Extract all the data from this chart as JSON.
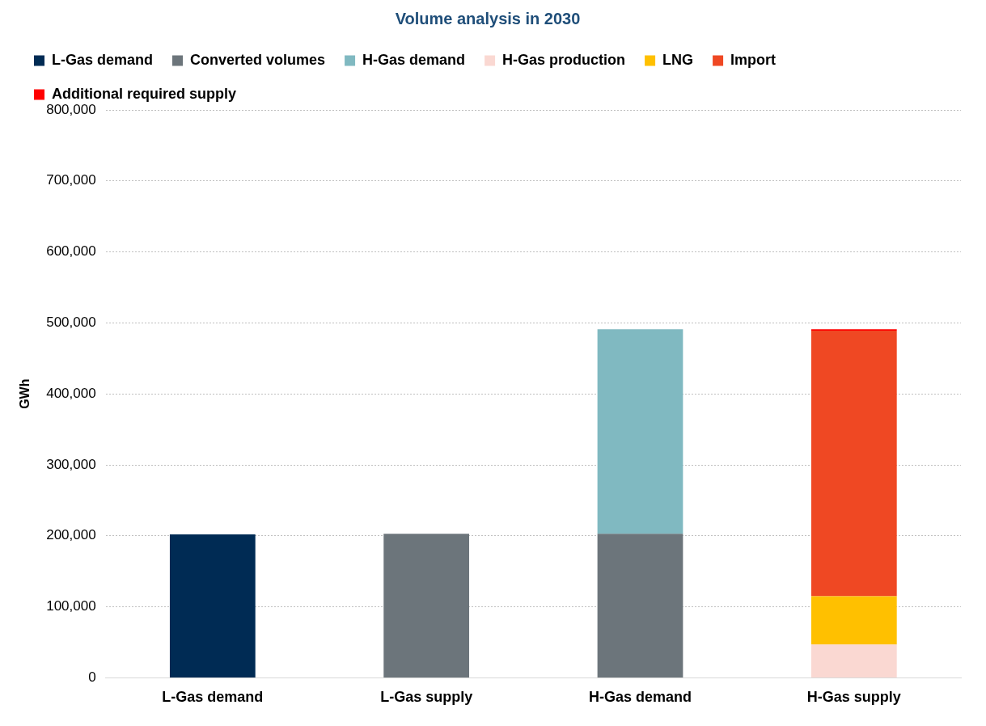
{
  "chart_data": {
    "type": "bar",
    "title": "Volume analysis in 2030",
    "ylabel": "GWh",
    "stacked": true,
    "legend": "top",
    "grid": "y",
    "categories": [
      "L-Gas demand",
      "L-Gas supply",
      "H-Gas demand",
      "H-Gas supply"
    ],
    "ylim": [
      0,
      800000
    ],
    "yticks": [
      0,
      {
        "value": 100000,
        "label": "100,000"
      },
      {
        "value": 200000,
        "label": "200,000"
      },
      {
        "value": 300000,
        "label": "300,000"
      },
      {
        "value": 400000,
        "label": "400,000"
      },
      {
        "value": 500000,
        "label": "500,000"
      },
      {
        "value": 600000,
        "label": "600,000"
      },
      {
        "value": 700000,
        "label": "700,000"
      },
      {
        "value": 800000,
        "label": "800,000"
      }
    ],
    "series": [
      {
        "name": "L-Gas demand",
        "color": "#002b54",
        "values": [
          202000,
          null,
          null,
          null
        ]
      },
      {
        "name": "Converted volumes",
        "color": "#6c757b",
        "values": [
          null,
          203000,
          203000,
          null
        ]
      },
      {
        "name": "H-Gas demand",
        "color": "#80b9c1",
        "values": [
          null,
          null,
          288000,
          null
        ]
      },
      {
        "name": "H-Gas production",
        "color": "#fad8d2",
        "values": [
          null,
          null,
          null,
          47000
        ]
      },
      {
        "name": "LNG",
        "color": "#ffc000",
        "values": [
          null,
          null,
          null,
          68000
        ]
      },
      {
        "name": "Import",
        "color": "#ef4823",
        "values": [
          null,
          null,
          null,
          374000
        ]
      },
      {
        "name": "Additional required supply",
        "color": "#ff0000",
        "values": [
          null,
          null,
          null,
          2000
        ]
      }
    ]
  }
}
